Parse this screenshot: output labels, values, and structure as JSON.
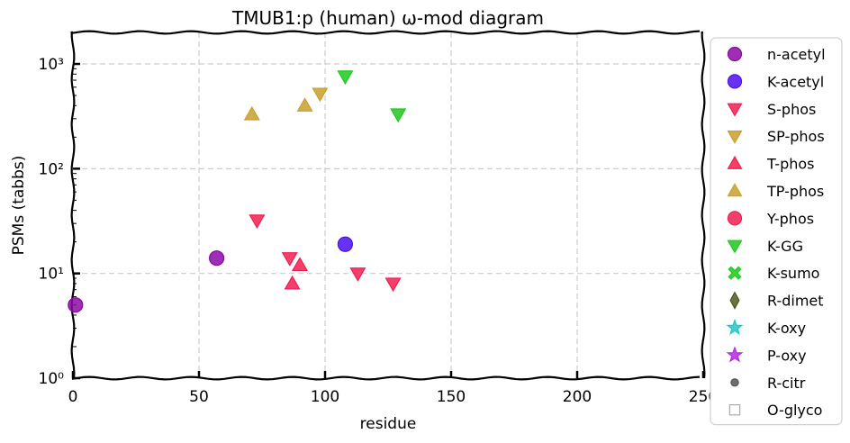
{
  "chart_data": {
    "type": "scatter",
    "title": "TMUB1:p (human) ω-mod diagram",
    "xlabel": "residue",
    "ylabel": "PSMs (tabbs)",
    "xlim": [
      0,
      250
    ],
    "ylim": [
      1,
      2000
    ],
    "yscale": "log",
    "grid": true,
    "legend_position": "right",
    "x_ticks": [
      0,
      50,
      100,
      150,
      200,
      250
    ],
    "x_tick_labels": [
      "0",
      "50",
      "100",
      "150",
      "200",
      "250"
    ],
    "y_ticks": [
      1,
      10,
      100,
      1000
    ],
    "y_tick_labels": [
      "10⁰",
      "10¹",
      "10²",
      "10³"
    ],
    "series": [
      {
        "name": "n-acetyl",
        "marker": "circle",
        "color": "#8B0AA5",
        "points": [
          [
            1,
            5
          ],
          [
            57,
            14
          ]
        ]
      },
      {
        "name": "K-acetyl",
        "marker": "circle",
        "color": "#4B0FF0",
        "points": [
          [
            108,
            19
          ]
        ]
      },
      {
        "name": "S-phos",
        "marker": "triangle-down",
        "color": "#F01E50",
        "points": [
          [
            73,
            32
          ],
          [
            86,
            14
          ],
          [
            113,
            10
          ],
          [
            127,
            8
          ]
        ]
      },
      {
        "name": "SP-phos",
        "marker": "triangle-down",
        "color": "#C8A02D",
        "points": [
          [
            98,
            520
          ]
        ]
      },
      {
        "name": "T-phos",
        "marker": "triangle-up",
        "color": "#F01E50",
        "points": [
          [
            87,
            8
          ],
          [
            90,
            12
          ]
        ]
      },
      {
        "name": "TP-phos",
        "marker": "triangle-up",
        "color": "#C8A02D",
        "points": [
          [
            71,
            330
          ],
          [
            92,
            400
          ]
        ]
      },
      {
        "name": "Y-phos",
        "marker": "circle",
        "color": "#F01E50",
        "points": []
      },
      {
        "name": "K-GG",
        "marker": "triangle-down",
        "color": "#1EC81E",
        "points": [
          [
            108,
            760
          ],
          [
            129,
            330
          ]
        ]
      },
      {
        "name": "K-sumo",
        "marker": "x",
        "color": "#1EC81E",
        "points": []
      },
      {
        "name": "R-dimet",
        "marker": "diamond",
        "color": "#4B5A1E",
        "points": []
      },
      {
        "name": "K-oxy",
        "marker": "star",
        "color": "#1EC8C8",
        "points": []
      },
      {
        "name": "P-oxy",
        "marker": "star",
        "color": "#B428E6",
        "points": []
      },
      {
        "name": "R-citr",
        "marker": "small-circle",
        "color": "#555555",
        "points": []
      },
      {
        "name": "O-glyco",
        "marker": "square-open",
        "color": "#AAAAAA",
        "points": []
      }
    ]
  }
}
